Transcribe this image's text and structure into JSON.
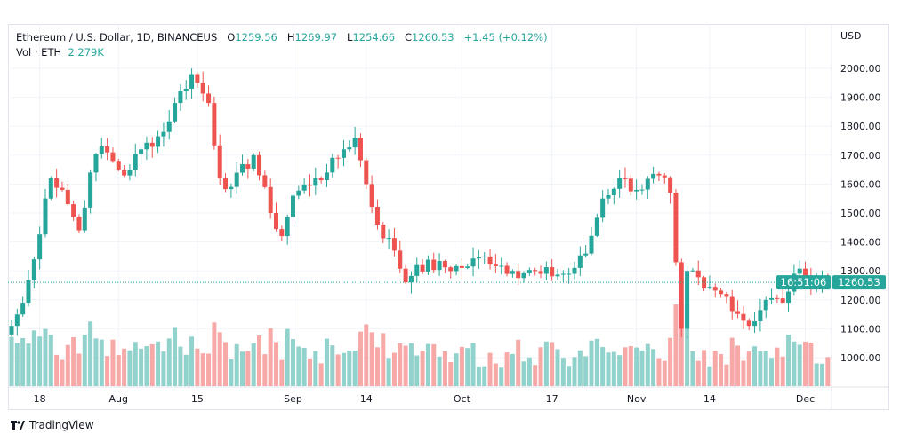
{
  "header": {
    "symbol": "Ethereum / U.S. Dollar, 1D, BINANCEUS",
    "o_label": "O",
    "o": "1259.56",
    "h_label": "H",
    "h": "1269.97",
    "l_label": "L",
    "l": "1254.66",
    "c_label": "C",
    "c": "1260.53",
    "change": "+1.45 (+0.12%)",
    "vol_label": "Vol · ETH",
    "vol": "2.279K"
  },
  "footer": {
    "brand": "TradingView"
  },
  "colors": {
    "up": "#26a69a",
    "down": "#ef5350",
    "vol_up": "#92d2cc",
    "vol_down": "#f7a9a7",
    "grid": "#f0f3fa"
  },
  "chart_data": {
    "type": "candlestick",
    "currency": "USD",
    "ylim": [
      920,
      2060
    ],
    "y_ticks": [
      "1000.00",
      "1100.00",
      "1200.00",
      "1300.00",
      "1400.00",
      "1500.00",
      "1600.00",
      "1700.00",
      "1800.00",
      "1900.00",
      "2000.00"
    ],
    "x_ticks": [
      {
        "label": "18",
        "day": 5
      },
      {
        "label": "Aug",
        "day": 19
      },
      {
        "label": "15",
        "day": 33
      },
      {
        "label": "Sep",
        "day": 50
      },
      {
        "label": "14",
        "day": 63
      },
      {
        "label": "Oct",
        "day": 80
      },
      {
        "label": "17",
        "day": 96
      },
      {
        "label": "Nov",
        "day": 111
      },
      {
        "label": "14",
        "day": 124
      },
      {
        "label": "Dec",
        "day": 141
      }
    ],
    "close_keyframes": [
      [
        0,
        1110
      ],
      [
        2,
        1190
      ],
      [
        4,
        1340
      ],
      [
        6,
        1550
      ],
      [
        7,
        1620
      ],
      [
        9,
        1580
      ],
      [
        12,
        1440
      ],
      [
        14,
        1640
      ],
      [
        16,
        1730
      ],
      [
        18,
        1680
      ],
      [
        20,
        1630
      ],
      [
        23,
        1720
      ],
      [
        27,
        1780
      ],
      [
        29,
        1880
      ],
      [
        32,
        1980
      ],
      [
        35,
        1880
      ],
      [
        37,
        1620
      ],
      [
        39,
        1590
      ],
      [
        43,
        1700
      ],
      [
        46,
        1500
      ],
      [
        48,
        1420
      ],
      [
        50,
        1560
      ],
      [
        54,
        1620
      ],
      [
        56,
        1640
      ],
      [
        59,
        1720
      ],
      [
        61,
        1760
      ],
      [
        63,
        1600
      ],
      [
        65,
        1460
      ],
      [
        68,
        1370
      ],
      [
        70,
        1260
      ],
      [
        72,
        1320
      ],
      [
        80,
        1310
      ],
      [
        84,
        1350
      ],
      [
        89,
        1300
      ],
      [
        94,
        1290
      ],
      [
        99,
        1290
      ],
      [
        102,
        1360
      ],
      [
        105,
        1550
      ],
      [
        108,
        1620
      ],
      [
        111,
        1580
      ],
      [
        115,
        1630
      ],
      [
        117,
        1570
      ],
      [
        118,
        1330
      ],
      [
        119,
        1100
      ],
      [
        120,
        1300
      ],
      [
        123,
        1240
      ],
      [
        127,
        1210
      ],
      [
        131,
        1110
      ],
      [
        134,
        1200
      ],
      [
        137,
        1190
      ],
      [
        139,
        1290
      ],
      [
        141,
        1280
      ],
      [
        145,
        1260.53
      ]
    ],
    "last_price": "1260.53",
    "countdown": "16:51:06"
  }
}
